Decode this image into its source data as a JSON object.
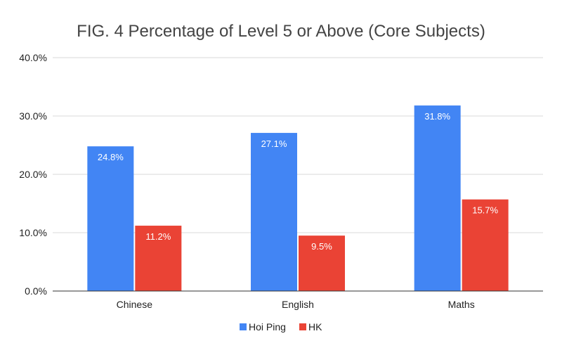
{
  "chart_data": {
    "type": "bar",
    "title": "FIG. 4 Percentage of Level 5 or Above (Core Subjects)",
    "xlabel": "",
    "ylabel": "",
    "categories": [
      "Chinese",
      "English",
      "Maths"
    ],
    "series": [
      {
        "name": "Hoi Ping",
        "values": [
          24.8,
          27.1,
          31.8
        ],
        "labels": [
          "24.8%",
          "27.1%",
          "31.8%"
        ],
        "color": "#4285f4"
      },
      {
        "name": "HK",
        "values": [
          11.2,
          9.5,
          15.7
        ],
        "labels": [
          "11.2%",
          "9.5%",
          "15.7%"
        ],
        "color": "#ea4335"
      }
    ],
    "ylim": [
      0,
      40
    ],
    "yticks": [
      0,
      10,
      20,
      30,
      40
    ],
    "ytick_labels": [
      "0.0%",
      "10.0%",
      "20.0%",
      "30.0%",
      "40.0%"
    ],
    "grid": true,
    "legend_position": "bottom"
  }
}
